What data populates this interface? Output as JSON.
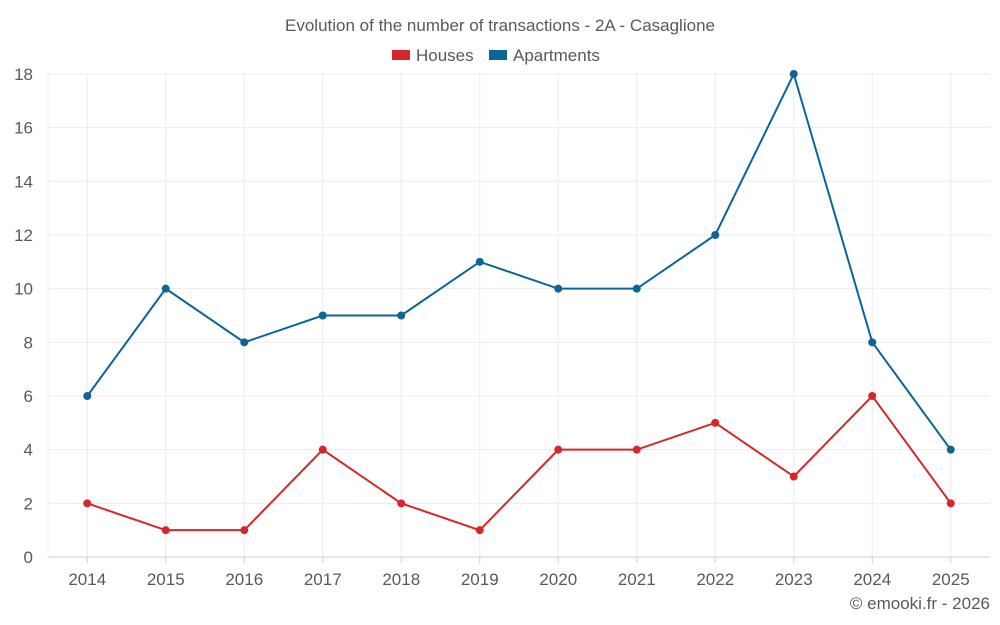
{
  "chart_data": {
    "type": "line",
    "title": "Evolution of the number of transactions - 2A - Casaglione",
    "categories": [
      "2014",
      "2015",
      "2016",
      "2017",
      "2018",
      "2019",
      "2020",
      "2021",
      "2022",
      "2023",
      "2024",
      "2025"
    ],
    "series": [
      {
        "name": "Houses",
        "color": "#d62728",
        "values": [
          2,
          1,
          1,
          4,
          2,
          1,
          4,
          4,
          5,
          3,
          6,
          2
        ]
      },
      {
        "name": "Apartments",
        "color": "#0b6596",
        "values": [
          6,
          10,
          8,
          9,
          9,
          11,
          10,
          10,
          12,
          18,
          8,
          4
        ]
      }
    ],
    "xlabel": "",
    "ylabel": "",
    "ylim": [
      0,
      18
    ],
    "yticks": [
      "0",
      "2",
      "4",
      "6",
      "8",
      "10",
      "12",
      "14",
      "16",
      "18"
    ],
    "grid": true,
    "legend_position": "top-center"
  },
  "credit": "© emooki.fr - 2026"
}
